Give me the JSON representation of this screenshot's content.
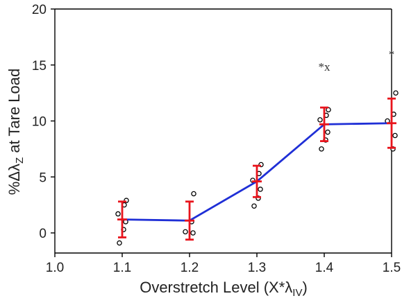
{
  "chart_data": {
    "type": "line",
    "xlabel_main": "Overstretch Level (X*λ",
    "xlabel_sub": "IV",
    "xlabel_close": ")",
    "ylabel_main": "%Δλ",
    "ylabel_sub": "Z",
    "ylabel_rest": " at Tare Load",
    "xlim": [
      1.0,
      1.5
    ],
    "ylim": [
      -1,
      20
    ],
    "x_ticks": [
      "1.0",
      "1.1",
      "1.2",
      "1.3",
      "1.4",
      "1.5"
    ],
    "y_ticks": [
      "0",
      "5",
      "10",
      "15",
      "20"
    ],
    "grid": false,
    "legend": "none",
    "colors": {
      "mean_line": "#1f2fd6",
      "error_bar": "#e8141c",
      "points": "#000000",
      "axis": "#000000"
    },
    "mean_series": [
      {
        "x": 1.1,
        "y": 1.2,
        "err": 1.6
      },
      {
        "x": 1.2,
        "y": 1.1,
        "err": 1.7
      },
      {
        "x": 1.3,
        "y": 4.6,
        "err": 1.4
      },
      {
        "x": 1.4,
        "y": 9.7,
        "err": 1.5
      },
      {
        "x": 1.5,
        "y": 9.8,
        "err": 2.2
      }
    ],
    "individual_points": [
      {
        "x": 1.1,
        "ys": [
          2.9,
          2.5,
          1.7,
          1.0,
          0.3,
          -0.9
        ]
      },
      {
        "x": 1.2,
        "ys": [
          3.5,
          1.0,
          0.1,
          0.0
        ]
      },
      {
        "x": 1.3,
        "ys": [
          6.1,
          5.3,
          4.7,
          3.9,
          3.1,
          2.4
        ]
      },
      {
        "x": 1.4,
        "ys": [
          11.0,
          10.5,
          10.1,
          9.0,
          8.3,
          7.5
        ]
      },
      {
        "x": 1.5,
        "ys": [
          12.5,
          10.6,
          10.0,
          8.7,
          7.5
        ]
      }
    ],
    "annotations": [
      {
        "x": 1.4,
        "y": 14.5,
        "text": "*x"
      },
      {
        "x": 1.5,
        "y": 15.6,
        "text": "*"
      }
    ]
  }
}
